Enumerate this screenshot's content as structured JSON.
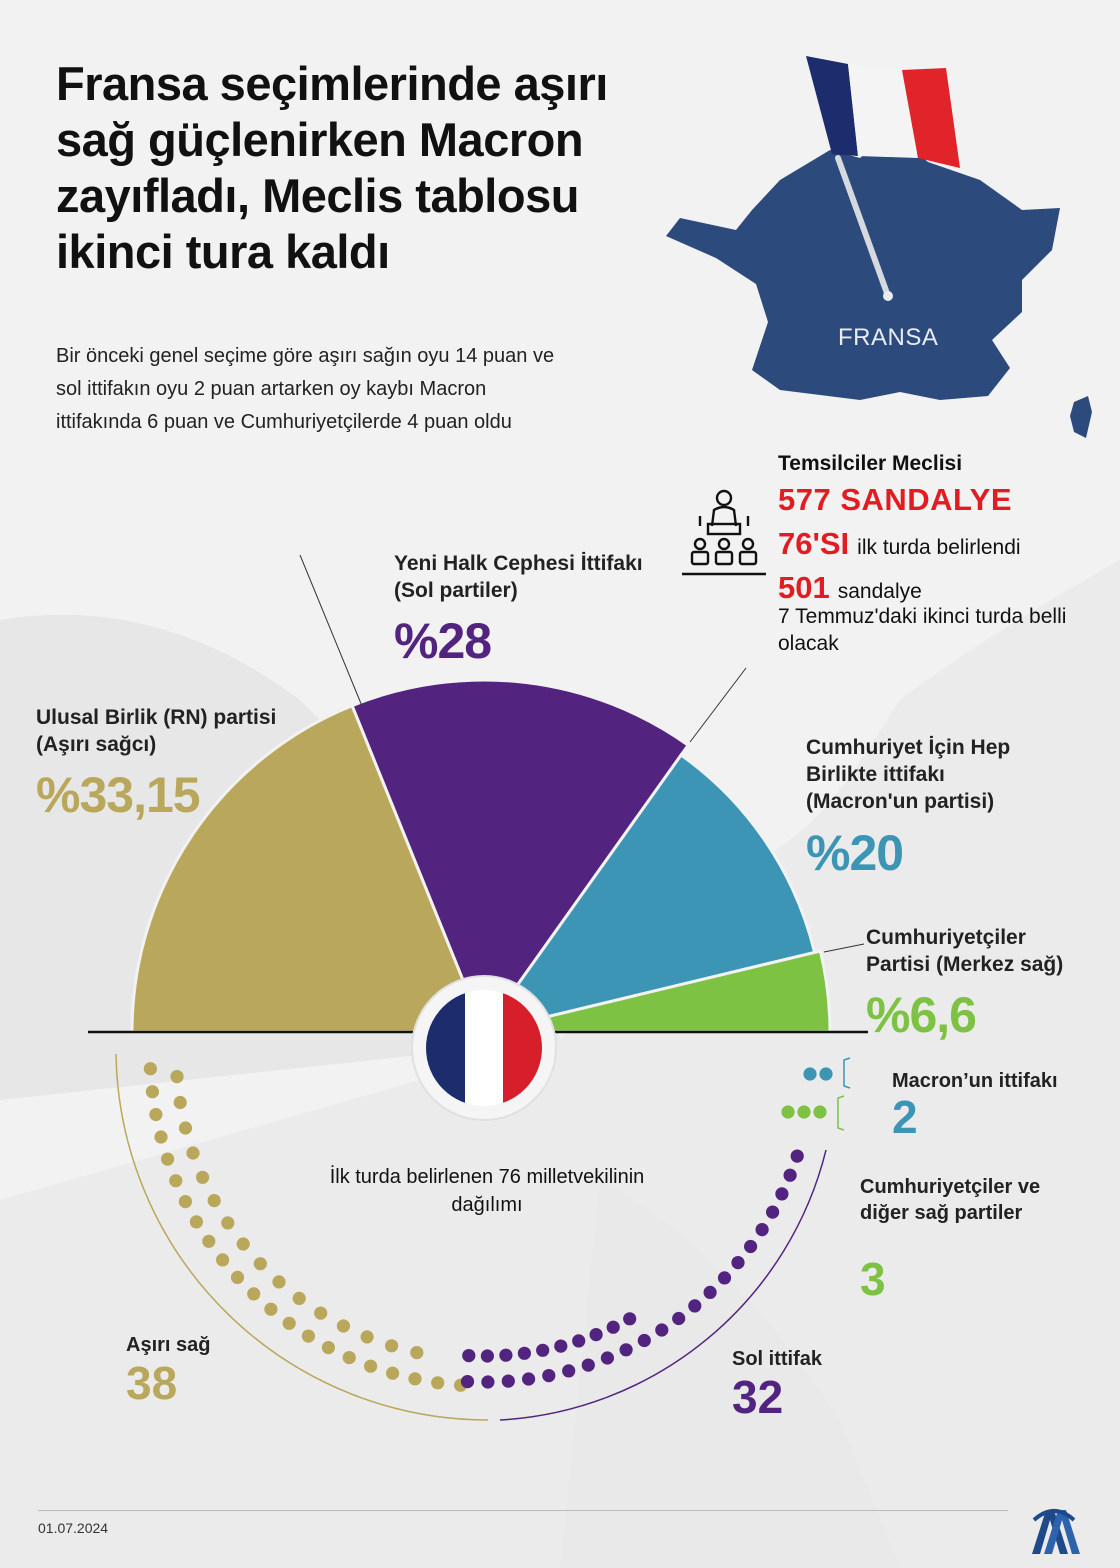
{
  "title": "Fransa seçimlerinde aşırı sağ güçlenirken Macron zayıfladı, Meclis tablosu ikinci tura kaldı",
  "subtitle": "Bir önceki genel seçime göre aşırı sağın oyu 14 puan ve sol ittifakın oyu 2 puan artarken oy kaybı Macron ittifakında 6 puan ve Cumhuriyetçilerde 4 puan oldu",
  "map_label": "FRANSA",
  "assembly": {
    "title": "Temsilciler Meclisi",
    "total_seats": "577 SANDALYE",
    "first_round_number": "76'SI",
    "first_round_text": "ilk turda belirlendi",
    "second_round_number": "501",
    "second_round_text": "sandalye",
    "second_round_note": "7 Temmuz'daki ikinci turda belli olacak"
  },
  "icons": {
    "parliament": "parliament-icon",
    "flag": "france-flag-icon",
    "logo": "aa-logo-icon"
  },
  "distribution_caption": "İlk turda belirlenen 76 milletvekilinin dağılımı",
  "date": "01.07.2024",
  "colors": {
    "far_right": "#b9a85c",
    "left": "#52247f",
    "macron": "#3d95b5",
    "republicans": "#7dc243",
    "accent_red": "#e11d23",
    "map": "#2c4a7c"
  },
  "chart_data": [
    {
      "type": "pie",
      "variant": "semicircle",
      "title": "",
      "slices": [
        {
          "label": "Ulusal Birlik (RN) partisi (Aşırı sağcı)",
          "value": 33.15,
          "value_label": "%33,15",
          "color": "#b9a85c"
        },
        {
          "label": "Yeni Halk Cephesi İttifakı (Sol partiler)",
          "value": 28,
          "value_label": "%28",
          "color": "#52247f"
        },
        {
          "label": "Cumhuriyet İçin Hep Birlikte ittifakı (Macron'un partisi)",
          "value": 20,
          "value_label": "%20",
          "color": "#3d95b5"
        },
        {
          "label": "Cumhuriyetçiler Partisi (Merkez sağ)",
          "value": 6.6,
          "value_label": "%6,6",
          "color": "#7dc243"
        }
      ]
    },
    {
      "type": "dot-arc",
      "title": "İlk turda belirlenen 76 milletvekilinin dağılımı",
      "total": 76,
      "groups": [
        {
          "label": "Aşırı sağ",
          "count": 38,
          "count_label": "38",
          "color": "#b9a85c"
        },
        {
          "label": "Sol ittifak",
          "count": 32,
          "count_label": "32",
          "color": "#52247f"
        },
        {
          "label": "Cumhuriyetçiler ve diğer sağ partiler",
          "count": 3,
          "count_label": "3",
          "color": "#7dc243"
        },
        {
          "label": "Macron’un ittifakı",
          "count": 2,
          "count_label": "2",
          "color": "#3d95b5"
        }
      ]
    }
  ]
}
